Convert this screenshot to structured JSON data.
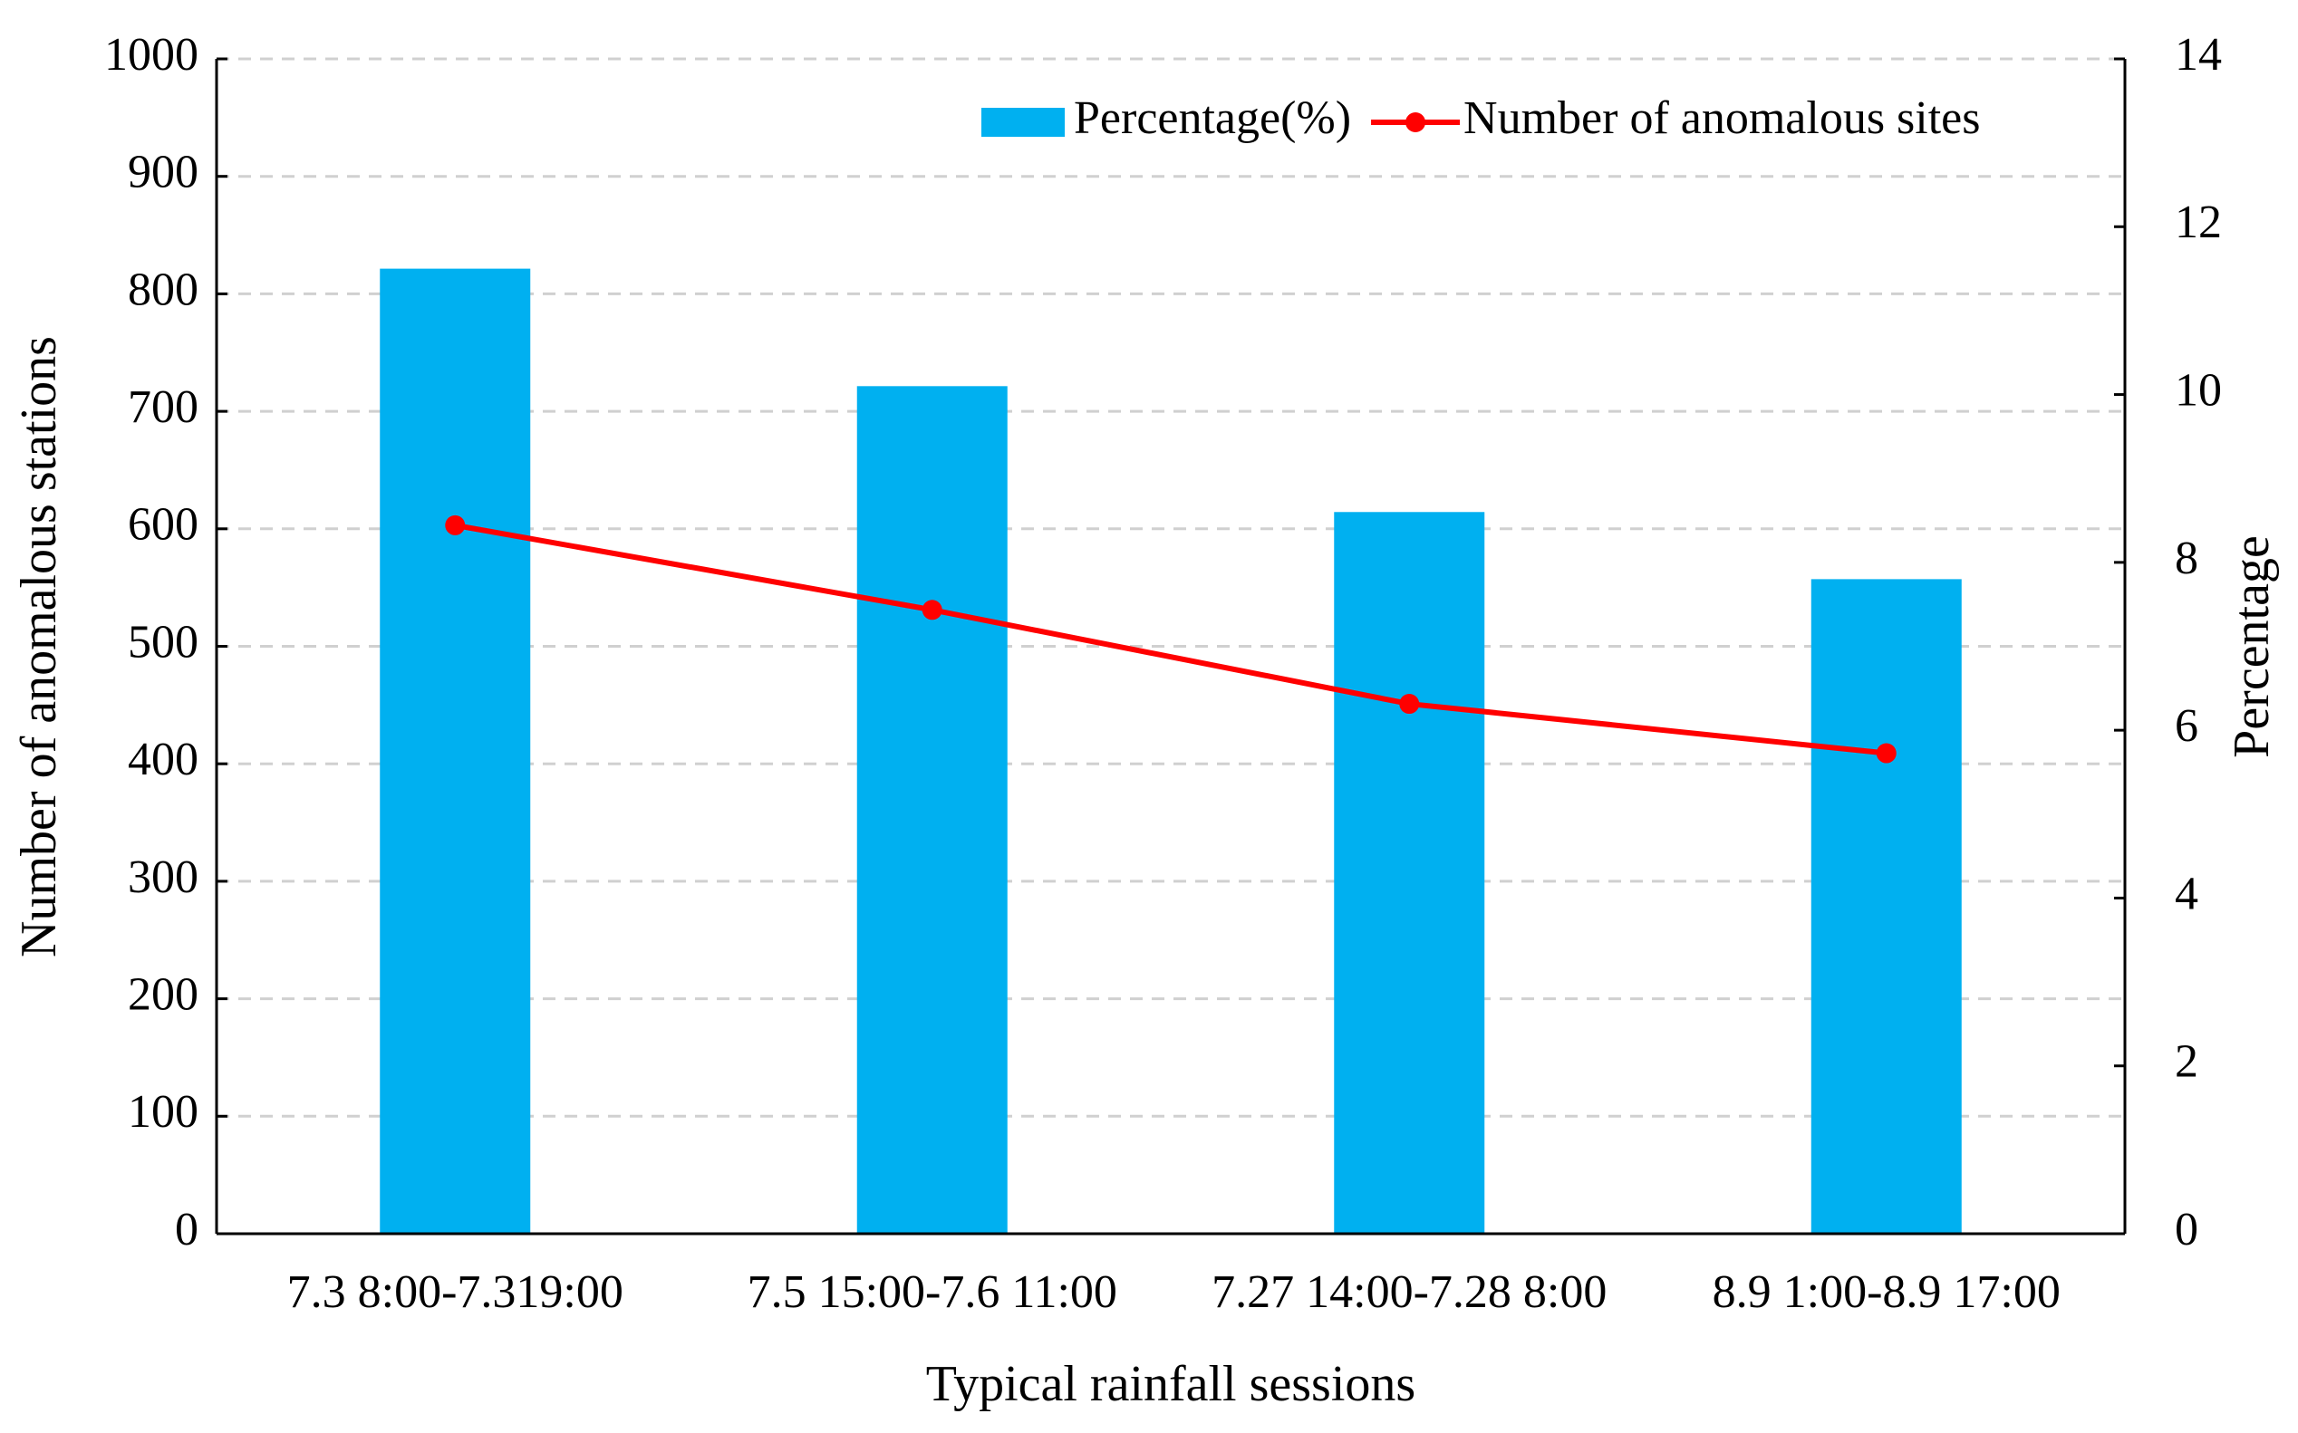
{
  "chart_data": {
    "type": "bar",
    "x_label": "Typical rainfall sessions",
    "y_label": "Number of anomalous stations",
    "y2_label": "Percentage",
    "categories": [
      "7.3 8:00-7.319:00",
      "7.5 15:00-7.6 11:00",
      "7.27 14:00-7.28 8:00",
      "8.9 1:00-8.9 17:00"
    ],
    "series": [
      {
        "name": "Percentage(%)",
        "type": "bar",
        "axis": "y2",
        "color": "#00b0f0",
        "values": [
          11.5,
          10.1,
          8.6,
          7.8
        ]
      },
      {
        "name": "Number of anomalous sites",
        "type": "line",
        "color": "#ff0000",
        "values": [
          603,
          531,
          451,
          409
        ]
      }
    ],
    "ylim": [
      0,
      1000
    ],
    "yticks": [
      0,
      100,
      200,
      300,
      400,
      500,
      600,
      700,
      800,
      900,
      1000
    ],
    "y2lim": [
      0,
      14
    ],
    "y2ticks": [
      0,
      2,
      4,
      6,
      8,
      10,
      12,
      14
    ],
    "grid": true,
    "legend": "upper right"
  }
}
